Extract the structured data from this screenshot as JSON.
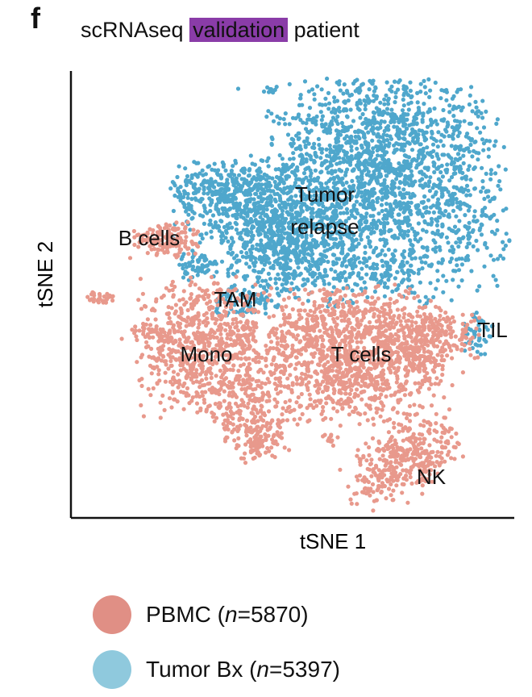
{
  "panel_label": "f",
  "title": {
    "prefix": "scRNAseq",
    "highlight": "validation",
    "suffix": "patient",
    "highlight_color": "#8a3ca8"
  },
  "chart_data": {
    "type": "scatter",
    "title": "scRNAseq validation patient",
    "xlabel": "tSNE 1",
    "ylabel": "tSNE 2",
    "grid": false,
    "axes": "left-bottom only, no ticks",
    "legend_placement": "bottom",
    "series": [
      {
        "name": "PBMC",
        "n": "5870",
        "color": "#e8998c"
      },
      {
        "name": "Tumor Bx",
        "n": "5397",
        "color": "#4fa7cc"
      }
    ],
    "cluster_labels": [
      "Tumor relapse",
      "B cells",
      "TAM",
      "Mono",
      "T cells",
      "TIL",
      "NK"
    ]
  },
  "legend": [
    {
      "name": "PBMC",
      "n_label": "n",
      "eq": "=5870",
      "color": "#e08f85"
    },
    {
      "name": "Tumor Bx",
      "n_label": "n",
      "eq": "=5397",
      "color": "#8fc9dd"
    }
  ]
}
